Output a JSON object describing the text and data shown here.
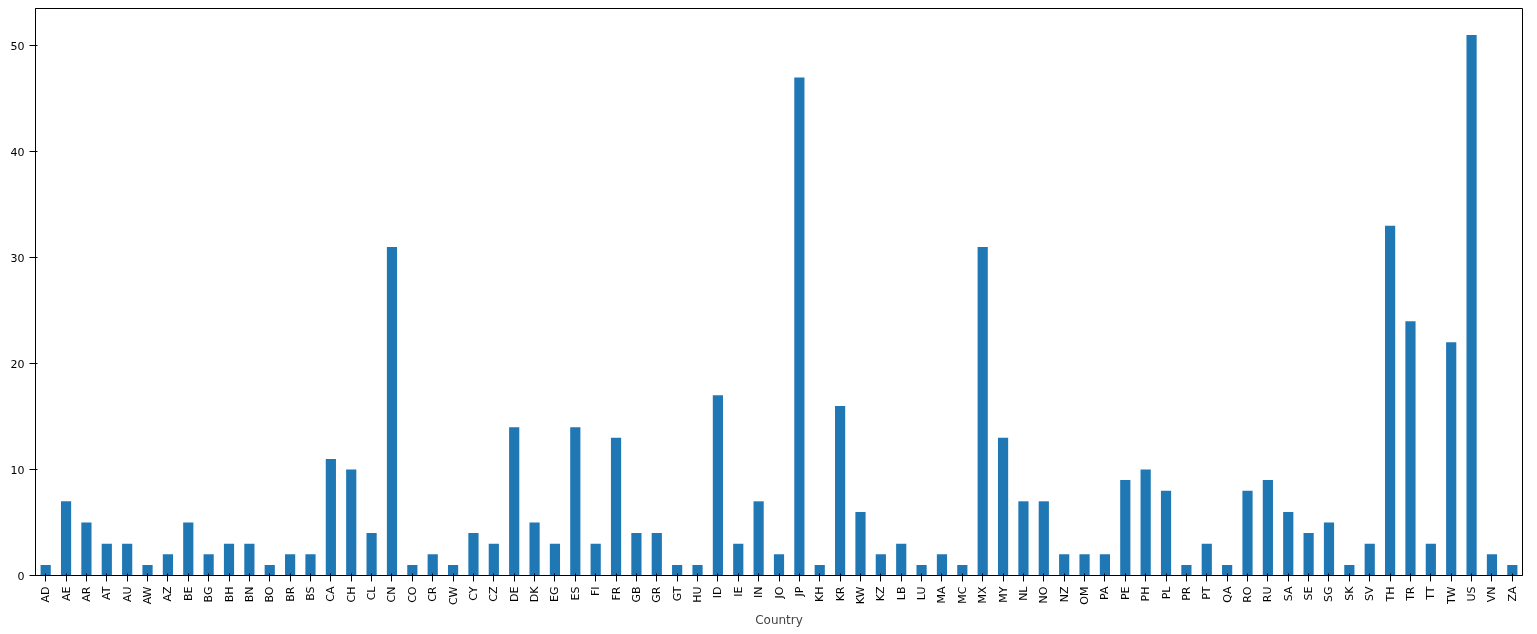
{
  "chart_data": {
    "type": "bar",
    "xlabel": "Country",
    "categories": [
      "AD",
      "AE",
      "AR",
      "AT",
      "AU",
      "AW",
      "AZ",
      "BE",
      "BG",
      "BH",
      "BN",
      "BO",
      "BR",
      "BS",
      "CA",
      "CH",
      "CL",
      "CN",
      "CO",
      "CR",
      "CW",
      "CY",
      "CZ",
      "DE",
      "DK",
      "EG",
      "ES",
      "FI",
      "FR",
      "GB",
      "GR",
      "GT",
      "HU",
      "ID",
      "IE",
      "IN",
      "JO",
      "JP",
      "KH",
      "KR",
      "KW",
      "KZ",
      "LB",
      "LU",
      "MA",
      "MC",
      "MX",
      "MY",
      "NL",
      "NO",
      "NZ",
      "OM",
      "PA",
      "PE",
      "PH",
      "PL",
      "PR",
      "PT",
      "QA",
      "RO",
      "RU",
      "SA",
      "SE",
      "SG",
      "SK",
      "SV",
      "TH",
      "TR",
      "TT",
      "TW",
      "US",
      "VN",
      "ZA"
    ],
    "values": [
      1,
      7,
      5,
      3,
      3,
      1,
      2,
      5,
      2,
      3,
      3,
      1,
      2,
      2,
      11,
      10,
      4,
      31,
      1,
      2,
      1,
      4,
      3,
      14,
      5,
      3,
      14,
      3,
      13,
      4,
      4,
      1,
      1,
      17,
      3,
      7,
      2,
      47,
      1,
      16,
      6,
      2,
      3,
      1,
      2,
      1,
      31,
      13,
      7,
      7,
      2,
      2,
      2,
      9,
      10,
      8,
      1,
      3,
      1,
      8,
      9,
      6,
      4,
      5,
      1,
      3,
      33,
      24,
      3,
      22,
      51,
      2,
      1
    ],
    "color": "#1f77b4",
    "ylim": [
      0,
      53.5
    ],
    "yticks": [
      0,
      10,
      20,
      30,
      40,
      50
    ],
    "grid": false
  }
}
